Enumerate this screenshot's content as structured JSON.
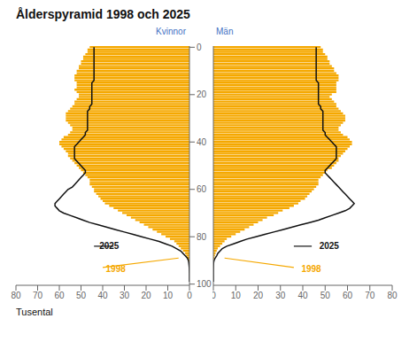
{
  "chart_data": [
    {
      "type": "bar",
      "orientation": "horizontal",
      "title": "Ålderspyramid 1998 och 2025",
      "xlabel": "Tusental",
      "annotations": [
        {
          "text": "Kvinnor",
          "color": "#4472C4"
        }
      ],
      "y": [
        0,
        1,
        2,
        3,
        4,
        5,
        6,
        7,
        8,
        9,
        10,
        11,
        12,
        13,
        14,
        15,
        16,
        17,
        18,
        19,
        20,
        21,
        22,
        23,
        24,
        25,
        26,
        27,
        28,
        29,
        30,
        31,
        32,
        33,
        34,
        35,
        36,
        37,
        38,
        39,
        40,
        41,
        42,
        43,
        44,
        45,
        46,
        47,
        48,
        49,
        50,
        51,
        52,
        53,
        54,
        55,
        56,
        57,
        58,
        59,
        60,
        61,
        62,
        63,
        64,
        65,
        66,
        67,
        68,
        69,
        70,
        71,
        72,
        73,
        74,
        75,
        76,
        77,
        78,
        79,
        80,
        81,
        82,
        83,
        84,
        85,
        86,
        87,
        88,
        89,
        90,
        91,
        92,
        93,
        94,
        95,
        96,
        97,
        98,
        99
      ],
      "xlim": [
        80,
        0
      ],
      "xticks": [
        0,
        10,
        20,
        30,
        40,
        50,
        60,
        70,
        80
      ],
      "ylim": [
        -0.5,
        100.5
      ],
      "yticks": [
        0,
        20,
        40,
        60,
        80,
        100
      ],
      "grid": false,
      "series": [
        {
          "name": "1998",
          "type": "bar",
          "color": "#F5A800",
          "values": [
            46,
            47,
            47,
            48,
            49,
            49,
            50,
            50,
            51,
            51,
            52,
            52,
            53,
            53,
            53,
            52,
            52,
            52,
            53,
            52,
            51,
            51,
            52,
            53,
            53,
            54,
            55,
            56,
            57,
            57,
            57,
            57,
            56,
            55,
            54,
            54,
            55,
            56,
            58,
            59,
            60,
            60,
            59,
            58,
            57,
            56,
            56,
            55,
            54,
            53,
            52,
            51,
            50,
            49,
            48,
            47,
            46,
            46,
            46,
            45,
            44,
            44,
            43,
            42,
            41,
            40,
            39,
            37,
            35,
            33,
            31,
            29,
            27,
            25,
            23,
            21,
            19,
            17,
            15,
            13,
            11,
            9,
            7,
            6,
            5,
            4,
            3,
            2,
            1.5,
            1,
            0.5,
            0.3,
            0.2,
            0.1,
            0.05,
            0.03,
            0.01,
            0,
            0,
            0
          ]
        },
        {
          "name": "2025",
          "type": "line",
          "color": "#111111",
          "values": [
            44,
            44,
            44,
            44,
            44,
            44,
            44,
            44,
            44,
            44,
            44,
            44,
            44,
            44,
            44,
            45,
            45,
            45,
            45,
            45,
            45,
            45,
            45,
            45,
            45,
            46,
            46,
            47,
            47,
            47,
            47,
            47,
            47,
            47,
            47,
            47,
            48,
            48,
            49,
            50,
            51,
            52,
            53,
            53,
            53,
            53,
            53,
            53,
            52,
            51,
            50,
            49,
            48,
            48,
            49,
            50,
            51,
            52,
            53,
            54,
            56,
            57,
            58,
            59,
            60,
            61,
            62,
            62,
            61,
            60,
            58,
            55,
            52,
            49,
            46,
            42,
            38,
            34,
            30,
            26,
            22,
            18,
            14,
            11,
            8,
            6,
            4,
            3,
            2,
            1,
            0.5,
            0.3,
            0.2,
            0.1,
            0.05,
            0.02,
            0,
            0,
            0,
            0
          ]
        }
      ]
    },
    {
      "type": "bar",
      "orientation": "horizontal",
      "annotations": [
        {
          "text": "Män",
          "color": "#4472C4"
        }
      ],
      "y": [
        0,
        1,
        2,
        3,
        4,
        5,
        6,
        7,
        8,
        9,
        10,
        11,
        12,
        13,
        14,
        15,
        16,
        17,
        18,
        19,
        20,
        21,
        22,
        23,
        24,
        25,
        26,
        27,
        28,
        29,
        30,
        31,
        32,
        33,
        34,
        35,
        36,
        37,
        38,
        39,
        40,
        41,
        42,
        43,
        44,
        45,
        46,
        47,
        48,
        49,
        50,
        51,
        52,
        53,
        54,
        55,
        56,
        57,
        58,
        59,
        60,
        61,
        62,
        63,
        64,
        65,
        66,
        67,
        68,
        69,
        70,
        71,
        72,
        73,
        74,
        75,
        76,
        77,
        78,
        79,
        80,
        81,
        82,
        83,
        84,
        85,
        86,
        87,
        88,
        89,
        90,
        91,
        92,
        93,
        94,
        95,
        96,
        97,
        98,
        99
      ],
      "xlim": [
        0,
        80
      ],
      "xticks": [
        0,
        10,
        20,
        30,
        40,
        50,
        60,
        70,
        80
      ],
      "ylim": [
        -0.5,
        100.5
      ],
      "yticks": [
        0,
        20,
        40,
        60,
        80,
        100
      ],
      "grid": false,
      "tick_labels": "x",
      "series": [
        {
          "name": "1998",
          "type": "bar",
          "color": "#F5A800",
          "values": [
            48,
            49,
            49,
            50,
            51,
            51,
            52,
            52,
            53,
            54,
            54,
            55,
            56,
            56,
            56,
            55,
            55,
            55,
            55,
            55,
            53,
            52,
            53,
            54,
            55,
            55,
            56,
            57,
            58,
            59,
            59,
            59,
            58,
            57,
            56,
            56,
            57,
            58,
            60,
            61,
            62,
            62,
            61,
            60,
            59,
            58,
            57,
            56,
            56,
            55,
            54,
            53,
            51,
            50,
            49,
            48,
            47,
            47,
            47,
            46,
            45,
            44,
            43,
            42,
            41,
            39,
            38,
            36,
            34,
            31,
            29,
            27,
            24,
            22,
            20,
            18,
            16,
            14,
            12,
            10,
            8,
            6,
            5,
            4,
            3,
            2,
            1.5,
            1,
            0.7,
            0.4,
            0.2,
            0.1,
            0.05,
            0.02,
            0.01,
            0,
            0,
            0,
            0,
            0
          ]
        },
        {
          "name": "2025",
          "type": "line",
          "color": "#111111",
          "values": [
            46,
            46,
            46,
            46,
            46,
            46,
            46,
            46,
            46,
            46,
            46,
            46,
            46,
            46,
            46,
            47,
            47,
            47,
            47,
            47,
            47,
            47,
            47,
            47,
            47,
            48,
            48,
            49,
            49,
            49,
            49,
            49,
            49,
            49,
            49,
            49,
            50,
            50,
            51,
            52,
            53,
            54,
            55,
            55,
            55,
            55,
            55,
            55,
            54,
            53,
            52,
            51,
            50,
            50,
            51,
            52,
            53,
            54,
            55,
            56,
            57,
            58,
            59,
            60,
            61,
            62,
            63,
            62,
            61,
            59,
            56,
            53,
            50,
            47,
            43,
            39,
            35,
            31,
            27,
            23,
            19,
            15,
            12,
            9,
            6,
            4,
            3,
            2,
            1.5,
            0.8,
            0.3,
            0.1,
            0.05,
            0.02,
            0.01,
            0,
            0,
            0,
            0,
            0
          ]
        }
      ]
    }
  ]
}
